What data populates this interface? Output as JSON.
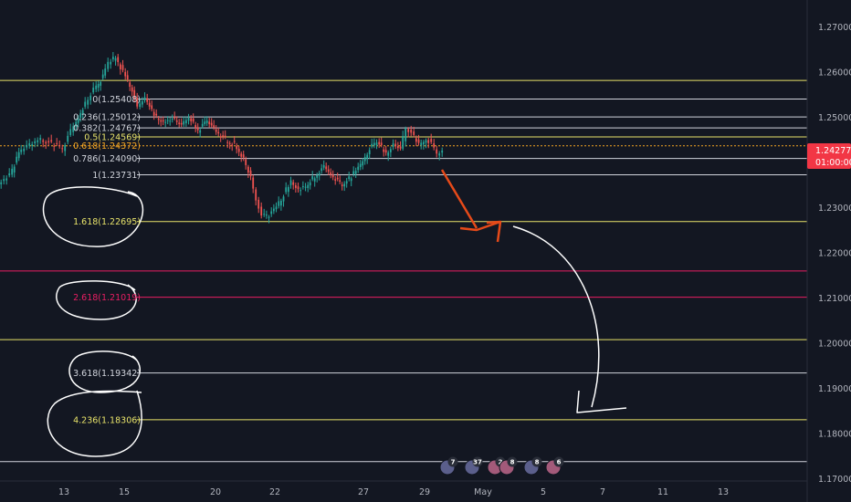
{
  "chart_data": {
    "type": "candlestick",
    "instrument_note": "",
    "ylim": [
      1.1695,
      1.276
    ],
    "y_ticks": [
      "1.27000",
      "1.26000",
      "1.25000",
      "1.24000",
      "1.23000",
      "1.22000",
      "1.21000",
      "1.20000",
      "1.19000",
      "1.18000",
      "1.17000"
    ],
    "x_ticks": [
      "13",
      "15",
      "20",
      "22",
      "27",
      "29",
      "May",
      "5",
      "7",
      "11",
      "13"
    ],
    "current_price": {
      "value": "1.24277",
      "countdown": "01:00:00",
      "color": "#f23645"
    },
    "fib_levels": [
      {
        "ratio": "0",
        "text": "0(1.25408)",
        "value": 1.25408,
        "color": "#d1d4dc"
      },
      {
        "ratio": "0.236",
        "text": "0.236(1.25012)",
        "value": 1.25012,
        "color": "#d1d4dc"
      },
      {
        "ratio": "0.382",
        "text": "0.382(1.24767)",
        "value": 1.24767,
        "color": "#d1d4dc"
      },
      {
        "ratio": "0.5",
        "text": "0.5(1.24569)",
        "value": 1.24569,
        "color": "#e8e36a"
      },
      {
        "ratio": "0.618",
        "text": "0.618(1.24372)",
        "value": 1.24372,
        "color": "#f5a623"
      },
      {
        "ratio": "0.786",
        "text": "0.786(1.24090)",
        "value": 1.2409,
        "color": "#d1d4dc"
      },
      {
        "ratio": "1",
        "text": "1(1.23731)",
        "value": 1.23731,
        "color": "#d1d4dc"
      },
      {
        "ratio": "1.618",
        "text": "1.618(1.22695)",
        "value": 1.22695,
        "color": "#e8e36a"
      },
      {
        "ratio": "2.618",
        "text": "2.618(1.21019)",
        "value": 1.21019,
        "color": "#e91e63"
      },
      {
        "ratio": "3.618",
        "text": "3.618(1.19342)",
        "value": 1.19342,
        "color": "#d1d4dc"
      },
      {
        "ratio": "4.236",
        "text": "4.236(1.18306)",
        "value": 1.18306,
        "color": "#e8e36a"
      }
    ],
    "extra_lines": [
      {
        "value": 1.2582,
        "color": "#e8e36a"
      },
      {
        "value": 1.216,
        "color": "#e91e63"
      },
      {
        "value": 1.2008,
        "color": "#e8e36a"
      },
      {
        "value": 1.1738,
        "color": "#d1d4dc"
      }
    ],
    "events": [
      {
        "count": "7",
        "flag": "US"
      },
      {
        "count": "37",
        "flag": "US"
      },
      {
        "count": "2",
        "flag": "UK"
      },
      {
        "count": "8",
        "flag": "UK"
      },
      {
        "count": "8",
        "flag": "US"
      },
      {
        "count": "6",
        "flag": "UK"
      }
    ],
    "colors": {
      "background": "#131722",
      "up": "#26a69a",
      "down": "#ef5350",
      "axis_text": "#b2b5be",
      "arrow_red": "#e64a19",
      "drawing_white": "#ffffff"
    }
  }
}
